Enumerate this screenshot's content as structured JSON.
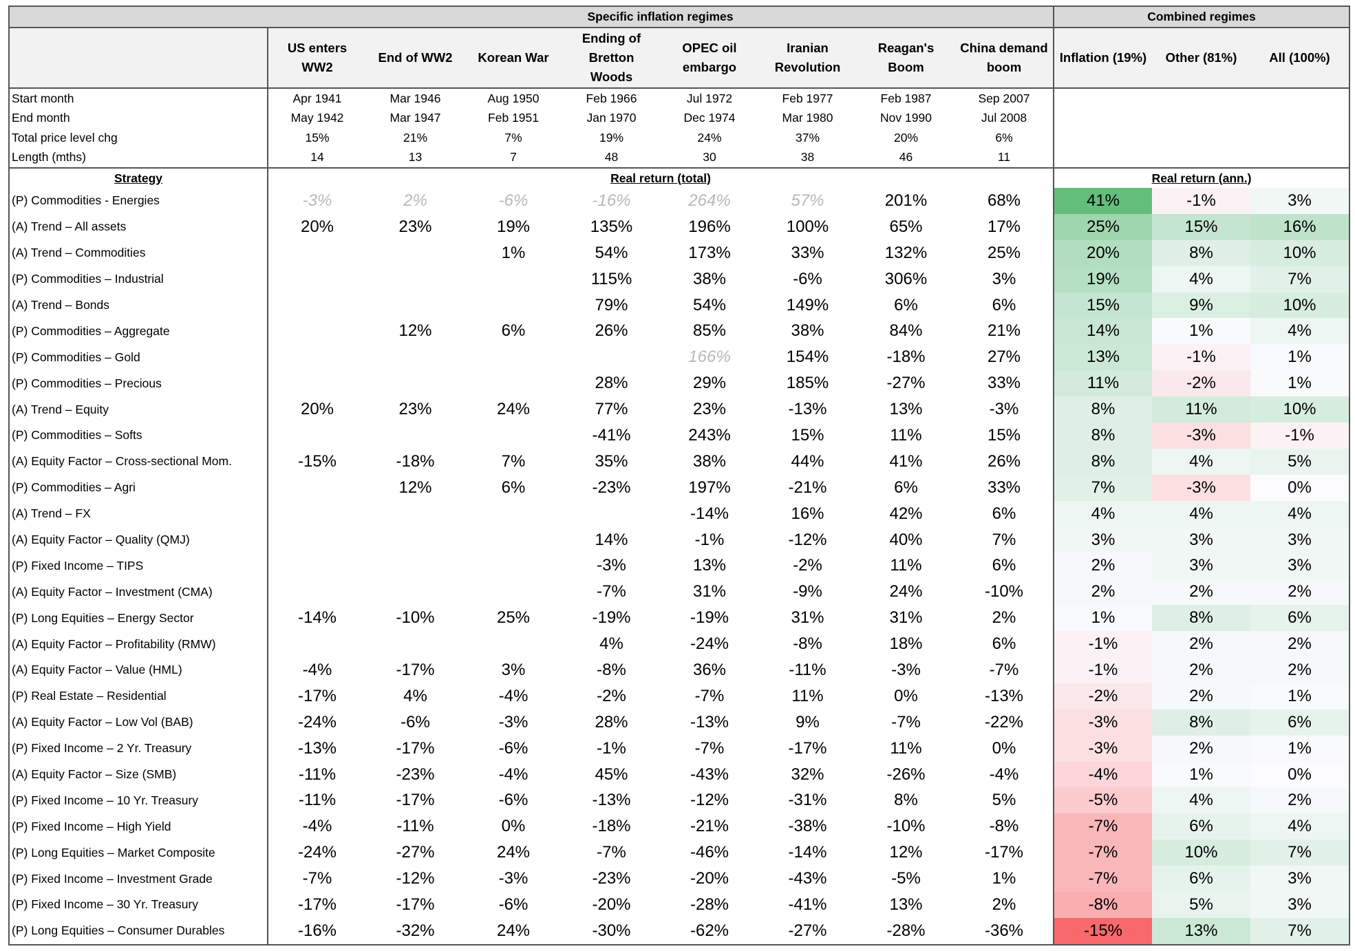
{
  "headers": {
    "specific_label": "Specific inflation regimes",
    "combined_label": "Combined regimes",
    "regimes": [
      {
        "line1": "US enters",
        "line2": "WW2",
        "line3": ""
      },
      {
        "line1": "End of WW2",
        "line2": "",
        "line3": ""
      },
      {
        "line1": "Korean War",
        "line2": "",
        "line3": ""
      },
      {
        "line1": "Ending of",
        "line2": "Bretton",
        "line3": "Woods"
      },
      {
        "line1": "OPEC oil",
        "line2": "embargo",
        "line3": ""
      },
      {
        "line1": "Iranian",
        "line2": "Revolution",
        "line3": ""
      },
      {
        "line1": "Reagan's",
        "line2": "Boom",
        "line3": ""
      },
      {
        "line1": "China demand",
        "line2": "boom",
        "line3": ""
      }
    ],
    "combined": [
      "Inflation (19%)",
      "Other (81%)",
      "All (100%)"
    ]
  },
  "meta_rows": [
    {
      "label": "Start month",
      "values": [
        "Apr 1941",
        "Mar 1946",
        "Aug 1950",
        "Feb 1966",
        "Jul 1972",
        "Feb 1977",
        "Feb 1987",
        "Sep 2007"
      ]
    },
    {
      "label": "End month",
      "values": [
        "May 1942",
        "Mar 1947",
        "Feb 1951",
        "Jan 1970",
        "Dec 1974",
        "Mar 1980",
        "Nov 1990",
        "Jul 2008"
      ]
    },
    {
      "label": "Total price level chg",
      "values": [
        "15%",
        "21%",
        "7%",
        "19%",
        "24%",
        "37%",
        "20%",
        "6%"
      ]
    },
    {
      "label": "Length (mths)",
      "values": [
        "14",
        "13",
        "7",
        "48",
        "30",
        "38",
        "46",
        "11"
      ]
    }
  ],
  "subheaders": {
    "strategy": "Strategy",
    "real_total": "Real return (total)",
    "real_ann": "Real return (ann.)"
  },
  "colors": {
    "strong_green": "#63be7b",
    "strong_red": "#f8696b",
    "neutral": "#fcfcff"
  },
  "rows": [
    {
      "name": "(P) Commodities - Energies",
      "regimes": [
        "-3%",
        "2%",
        "-6%",
        "-16%",
        "264%",
        "57%",
        "201%",
        "68%"
      ],
      "faded": [
        0,
        1,
        2,
        3,
        4,
        5
      ],
      "combined": [
        "41%",
        "-1%",
        "3%"
      ]
    },
    {
      "name": "(A) Trend – All assets",
      "regimes": [
        "20%",
        "23%",
        "19%",
        "135%",
        "196%",
        "100%",
        "65%",
        "17%"
      ],
      "faded": [],
      "combined": [
        "25%",
        "15%",
        "16%"
      ]
    },
    {
      "name": "(A) Trend – Commodities",
      "regimes": [
        "",
        "",
        "1%",
        "54%",
        "173%",
        "33%",
        "132%",
        "25%"
      ],
      "faded": [],
      "combined": [
        "20%",
        "8%",
        "10%"
      ]
    },
    {
      "name": "(P) Commodities – Industrial",
      "regimes": [
        "",
        "",
        "",
        "115%",
        "38%",
        "-6%",
        "306%",
        "3%"
      ],
      "faded": [],
      "combined": [
        "19%",
        "4%",
        "7%"
      ]
    },
    {
      "name": "(A) Trend – Bonds",
      "regimes": [
        "",
        "",
        "",
        "79%",
        "54%",
        "149%",
        "6%",
        "6%"
      ],
      "faded": [],
      "combined": [
        "15%",
        "9%",
        "10%"
      ]
    },
    {
      "name": "(P) Commodities – Aggregate",
      "regimes": [
        "",
        "12%",
        "6%",
        "26%",
        "85%",
        "38%",
        "84%",
        "21%"
      ],
      "faded": [],
      "combined": [
        "14%",
        "1%",
        "4%"
      ]
    },
    {
      "name": "(P) Commodities – Gold",
      "regimes": [
        "",
        "",
        "",
        "",
        "166%",
        "154%",
        "-18%",
        "27%"
      ],
      "faded": [
        4
      ],
      "combined": [
        "13%",
        "-1%",
        "1%"
      ]
    },
    {
      "name": "(P) Commodities – Precious",
      "regimes": [
        "",
        "",
        "",
        "28%",
        "29%",
        "185%",
        "-27%",
        "33%"
      ],
      "faded": [],
      "combined": [
        "11%",
        "-2%",
        "1%"
      ]
    },
    {
      "name": "(A) Trend – Equity",
      "regimes": [
        "20%",
        "23%",
        "24%",
        "77%",
        "23%",
        "-13%",
        "13%",
        "-3%"
      ],
      "faded": [],
      "combined": [
        "8%",
        "11%",
        "10%"
      ]
    },
    {
      "name": "(P) Commodities – Softs",
      "regimes": [
        "",
        "",
        "",
        "-41%",
        "243%",
        "15%",
        "11%",
        "15%"
      ],
      "faded": [],
      "combined": [
        "8%",
        "-3%",
        "-1%"
      ]
    },
    {
      "name": "(A) Equity Factor – Cross-sectional Mom.",
      "regimes": [
        "-15%",
        "-18%",
        "7%",
        "35%",
        "38%",
        "44%",
        "41%",
        "26%"
      ],
      "faded": [],
      "combined": [
        "8%",
        "4%",
        "5%"
      ]
    },
    {
      "name": "(P) Commodities – Agri",
      "regimes": [
        "",
        "12%",
        "6%",
        "-23%",
        "197%",
        "-21%",
        "6%",
        "33%"
      ],
      "faded": [],
      "combined": [
        "7%",
        "-3%",
        "0%"
      ]
    },
    {
      "name": "(A) Trend – FX",
      "regimes": [
        "",
        "",
        "",
        "",
        "-14%",
        "16%",
        "42%",
        "6%"
      ],
      "faded": [],
      "combined": [
        "4%",
        "4%",
        "4%"
      ]
    },
    {
      "name": "(A) Equity Factor – Quality (QMJ)",
      "regimes": [
        "",
        "",
        "",
        "14%",
        "-1%",
        "-12%",
        "40%",
        "7%"
      ],
      "faded": [],
      "combined": [
        "3%",
        "3%",
        "3%"
      ]
    },
    {
      "name": "(P) Fixed Income – TIPS",
      "regimes": [
        "",
        "",
        "",
        "-3%",
        "13%",
        "-2%",
        "11%",
        "6%"
      ],
      "faded": [],
      "combined": [
        "2%",
        "3%",
        "3%"
      ]
    },
    {
      "name": "(A) Equity Factor – Investment (CMA)",
      "regimes": [
        "",
        "",
        "",
        "-7%",
        "31%",
        "-9%",
        "24%",
        "-10%"
      ],
      "faded": [],
      "combined": [
        "2%",
        "2%",
        "2%"
      ]
    },
    {
      "name": "(P) Long Equities – Energy Sector",
      "regimes": [
        "-14%",
        "-10%",
        "25%",
        "-19%",
        "-19%",
        "31%",
        "31%",
        "2%"
      ],
      "faded": [],
      "combined": [
        "1%",
        "8%",
        "6%"
      ]
    },
    {
      "name": "(A) Equity Factor – Profitability (RMW)",
      "regimes": [
        "",
        "",
        "",
        "4%",
        "-24%",
        "-8%",
        "18%",
        "6%"
      ],
      "faded": [],
      "combined": [
        "-1%",
        "2%",
        "2%"
      ]
    },
    {
      "name": "(A) Equity Factor – Value (HML)",
      "regimes": [
        "-4%",
        "-17%",
        "3%",
        "-8%",
        "36%",
        "-11%",
        "-3%",
        "-7%"
      ],
      "faded": [],
      "combined": [
        "-1%",
        "2%",
        "2%"
      ]
    },
    {
      "name": "(P) Real Estate – Residential",
      "regimes": [
        "-17%",
        "4%",
        "-4%",
        "-2%",
        "-7%",
        "11%",
        "0%",
        "-13%"
      ],
      "faded": [],
      "combined": [
        "-2%",
        "2%",
        "1%"
      ]
    },
    {
      "name": "(A) Equity Factor – Low Vol (BAB)",
      "regimes": [
        "-24%",
        "-6%",
        "-3%",
        "28%",
        "-13%",
        "9%",
        "-7%",
        "-22%"
      ],
      "faded": [],
      "combined": [
        "-3%",
        "8%",
        "6%"
      ]
    },
    {
      "name": "(P) Fixed Income – 2 Yr. Treasury",
      "regimes": [
        "-13%",
        "-17%",
        "-6%",
        "-1%",
        "-7%",
        "-17%",
        "11%",
        "0%"
      ],
      "faded": [],
      "combined": [
        "-3%",
        "2%",
        "1%"
      ]
    },
    {
      "name": "(A) Equity Factor – Size (SMB)",
      "regimes": [
        "-11%",
        "-23%",
        "-4%",
        "45%",
        "-43%",
        "32%",
        "-26%",
        "-4%"
      ],
      "faded": [],
      "combined": [
        "-4%",
        "1%",
        "0%"
      ]
    },
    {
      "name": "(P) Fixed Income – 10 Yr. Treasury",
      "regimes": [
        "-11%",
        "-17%",
        "-6%",
        "-13%",
        "-12%",
        "-31%",
        "8%",
        "5%"
      ],
      "faded": [],
      "combined": [
        "-5%",
        "4%",
        "2%"
      ]
    },
    {
      "name": "(P) Fixed Income – High Yield",
      "regimes": [
        "-4%",
        "-11%",
        "0%",
        "-18%",
        "-21%",
        "-38%",
        "-10%",
        "-8%"
      ],
      "faded": [],
      "combined": [
        "-7%",
        "6%",
        "4%"
      ]
    },
    {
      "name": "(P) Long Equities – Market Composite",
      "regimes": [
        "-24%",
        "-27%",
        "24%",
        "-7%",
        "-46%",
        "-14%",
        "12%",
        "-17%"
      ],
      "faded": [],
      "combined": [
        "-7%",
        "10%",
        "7%"
      ]
    },
    {
      "name": "(P) Fixed Income – Investment Grade",
      "regimes": [
        "-7%",
        "-12%",
        "-3%",
        "-23%",
        "-20%",
        "-43%",
        "-5%",
        "1%"
      ],
      "faded": [],
      "combined": [
        "-7%",
        "6%",
        "3%"
      ]
    },
    {
      "name": "(P) Fixed Income – 30 Yr. Treasury",
      "regimes": [
        "-17%",
        "-17%",
        "-6%",
        "-20%",
        "-28%",
        "-41%",
        "13%",
        "2%"
      ],
      "faded": [],
      "combined": [
        "-8%",
        "5%",
        "3%"
      ]
    },
    {
      "name": "(P) Long Equities – Consumer Durables",
      "regimes": [
        "-16%",
        "-32%",
        "24%",
        "-30%",
        "-62%",
        "-27%",
        "-28%",
        "-36%"
      ],
      "faded": [],
      "combined": [
        "-15%",
        "13%",
        "7%"
      ]
    }
  ]
}
